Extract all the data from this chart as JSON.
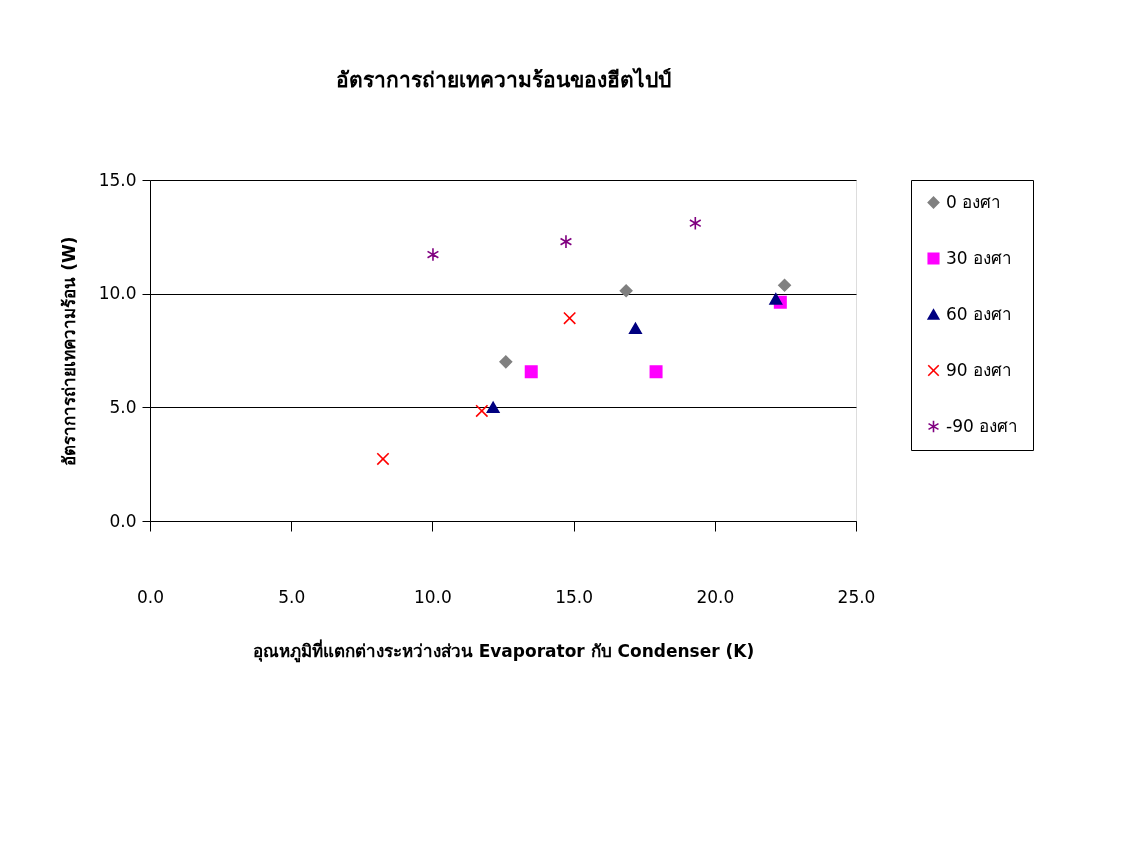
{
  "chart_data": {
    "type": "scatter",
    "title": "อัตราการถ่ายเทความร้อนของฮีตไปป์",
    "xlabel": "อุณหภูมิที่แตกต่างระหว่างส่วน Evaporator กับ Condenser (K)",
    "ylabel": "อัตราการถ่ายเทความร้อน (W)",
    "xlim": [
      0,
      25
    ],
    "ylim": [
      0,
      15
    ],
    "xticks": [
      {
        "value": 0,
        "label": "0.0"
      },
      {
        "value": 5,
        "label": "5.0"
      },
      {
        "value": 10,
        "label": "10.0"
      },
      {
        "value": 15,
        "label": "15.0"
      },
      {
        "value": 20,
        "label": "20.0"
      },
      {
        "value": 25,
        "label": "25.0"
      }
    ],
    "yticks": [
      {
        "value": 0,
        "label": "0.0"
      },
      {
        "value": 5,
        "label": "5.0"
      },
      {
        "value": 10,
        "label": "10.0"
      },
      {
        "value": 15,
        "label": "15.0"
      }
    ],
    "grid": "y",
    "legend": "right",
    "series": [
      {
        "name": "0 องศา",
        "color": "#808080",
        "marker": "diamond",
        "x": [
          12.6,
          16.86,
          22.47
        ],
        "values": [
          7.0,
          10.13,
          10.37
        ]
      },
      {
        "name": "30 องศา",
        "color": "#ff00ff",
        "marker": "square",
        "x": [
          13.5,
          17.92,
          22.32
        ],
        "values": [
          6.57,
          6.57,
          9.62
        ]
      },
      {
        "name": "60 องศา",
        "color": "#000080",
        "marker": "triangle",
        "x": [
          12.15,
          17.19,
          22.16
        ],
        "values": [
          5.0,
          8.48,
          9.77
        ]
      },
      {
        "name": "90 องศา",
        "color": "#ff0000",
        "marker": "cross",
        "x": [
          8.25,
          11.75,
          14.86
        ],
        "values": [
          2.73,
          4.84,
          8.92
        ]
      },
      {
        "name": "-90 องศา",
        "color": "#800080",
        "x": [
          10.02,
          14.73,
          19.31
        ],
        "values": [
          11.72,
          12.29,
          13.1
        ]
      }
    ]
  }
}
